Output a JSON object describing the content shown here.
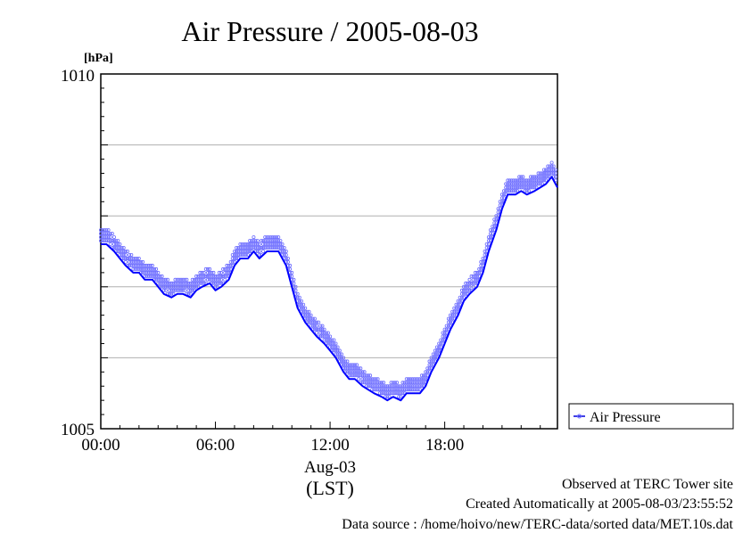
{
  "chart_data": {
    "type": "line",
    "title": "Air Pressure / 2005-08-03",
    "ylabel": "[hPa]",
    "xlabel": "(LST)",
    "date_label": "Aug-03",
    "ylim": [
      1005,
      1010
    ],
    "xlim": [
      0,
      23.9
    ],
    "y_ticks": [
      "1005",
      "1010"
    ],
    "y_gridlines": [
      1006,
      1007,
      1008,
      1009
    ],
    "x_ticks": [
      {
        "value": 0,
        "label": "00:00"
      },
      {
        "value": 6,
        "label": "06:00"
      },
      {
        "value": 12,
        "label": "12:00"
      },
      {
        "value": 18,
        "label": "18:00"
      }
    ],
    "legend": {
      "position": "right",
      "label": "Air Pressure"
    },
    "series": [
      {
        "name": "Air Pressure",
        "color": "#0000ff",
        "x": [
          0,
          0.3,
          0.7,
          1.0,
          1.3,
          1.7,
          2.0,
          2.3,
          2.7,
          3.0,
          3.3,
          3.7,
          4.0,
          4.3,
          4.7,
          5.0,
          5.3,
          5.7,
          6.0,
          6.3,
          6.7,
          7.0,
          7.3,
          7.7,
          8.0,
          8.3,
          8.7,
          9.0,
          9.3,
          9.7,
          10.0,
          10.3,
          10.7,
          11.0,
          11.3,
          11.7,
          12.0,
          12.3,
          12.7,
          13.0,
          13.3,
          13.7,
          14.0,
          14.3,
          14.7,
          15.0,
          15.3,
          15.7,
          16.0,
          16.3,
          16.7,
          17.0,
          17.3,
          17.7,
          18.0,
          18.3,
          18.7,
          19.0,
          19.3,
          19.7,
          20.0,
          20.3,
          20.7,
          21.0,
          21.3,
          21.7,
          22.0,
          22.3,
          22.7,
          23.0,
          23.3,
          23.6,
          23.9
        ],
        "values": [
          1007.6,
          1007.6,
          1007.5,
          1007.4,
          1007.3,
          1007.2,
          1007.2,
          1007.1,
          1007.1,
          1007.0,
          1006.9,
          1006.85,
          1006.9,
          1006.9,
          1006.85,
          1006.95,
          1007.0,
          1007.05,
          1006.95,
          1007.0,
          1007.1,
          1007.3,
          1007.4,
          1007.4,
          1007.5,
          1007.4,
          1007.5,
          1007.5,
          1007.5,
          1007.3,
          1007.0,
          1006.7,
          1006.5,
          1006.4,
          1006.3,
          1006.2,
          1006.1,
          1006.0,
          1005.8,
          1005.7,
          1005.7,
          1005.6,
          1005.55,
          1005.5,
          1005.45,
          1005.4,
          1005.45,
          1005.4,
          1005.5,
          1005.5,
          1005.5,
          1005.6,
          1005.8,
          1006.0,
          1006.2,
          1006.4,
          1006.6,
          1006.8,
          1006.9,
          1007.0,
          1007.2,
          1007.5,
          1007.8,
          1008.1,
          1008.3,
          1008.3,
          1008.35,
          1008.3,
          1008.35,
          1008.4,
          1008.45,
          1008.55,
          1008.4
        ]
      }
    ]
  },
  "footer": {
    "line1": "Observed at TERC Tower site",
    "line2": "Created Automatically at 2005-08-03/23:55:52",
    "line3": "Data source : /home/hoivo/new/TERC-data/sorted data/MET.10s.dat"
  }
}
